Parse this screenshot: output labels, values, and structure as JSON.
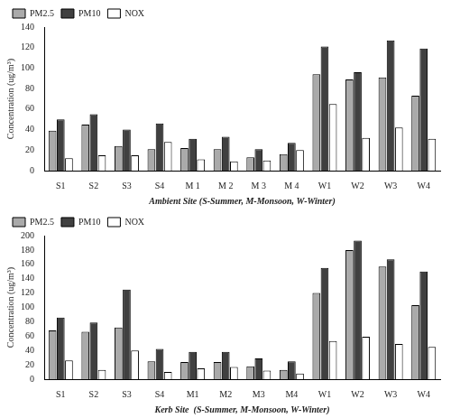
{
  "chart_data": [
    {
      "type": "bar",
      "categories": [
        "S1",
        "S2",
        "S3",
        "S4",
        "M 1",
        "M 2",
        "M 3",
        "M 4",
        "W1",
        "W2",
        "W3",
        "W4"
      ],
      "series": [
        {
          "name": "PM2.5",
          "color": "#aaaaaa",
          "values": [
            39,
            45,
            24,
            21,
            22,
            21,
            13,
            16,
            94,
            89,
            91,
            73
          ]
        },
        {
          "name": "PM10",
          "color": "#404040",
          "values": [
            50,
            55,
            40,
            46,
            31,
            33,
            21,
            27,
            121,
            96,
            127,
            119
          ]
        },
        {
          "name": "NOX",
          "color": "#ffffff",
          "values": [
            12,
            15,
            15,
            28,
            11,
            9,
            10,
            20,
            65,
            32,
            42,
            31
          ]
        }
      ],
      "xlabel": "Ambient Site (S-Summer, M-Monsoon, W-Winter)",
      "ylabel": "Concentration (ug/m³)",
      "ylim": [
        0,
        140
      ],
      "yticks": [
        0,
        20,
        40,
        60,
        80,
        100,
        120,
        140
      ],
      "grid": false,
      "legend": "upper left"
    },
    {
      "type": "bar",
      "categories": [
        "S1",
        "S2",
        "S3",
        "S4",
        "M1",
        "M2",
        "M3",
        "M4",
        "W1",
        "W2",
        "W3",
        "W4"
      ],
      "series": [
        {
          "name": "PM2.5",
          "color": "#aaaaaa",
          "values": [
            68,
            66,
            72,
            25,
            24,
            24,
            18,
            13,
            120,
            180,
            157,
            103
          ]
        },
        {
          "name": "PM10",
          "color": "#404040",
          "values": [
            86,
            79,
            125,
            42,
            38,
            38,
            29,
            25,
            155,
            193,
            167,
            150
          ]
        },
        {
          "name": "NOX",
          "color": "#ffffff",
          "values": [
            26,
            13,
            40,
            10,
            15,
            17,
            12,
            8,
            53,
            59,
            49,
            45
          ]
        }
      ],
      "xlabel": "Kerb Site  (S-Summer, M-Monsoon, W-Winter)",
      "ylabel": "Concentration (ug/m³)",
      "ylim": [
        0,
        200
      ],
      "yticks": [
        0,
        20,
        40,
        60,
        80,
        100,
        120,
        140,
        160,
        180,
        200
      ],
      "grid": false,
      "legend": "upper left"
    }
  ]
}
